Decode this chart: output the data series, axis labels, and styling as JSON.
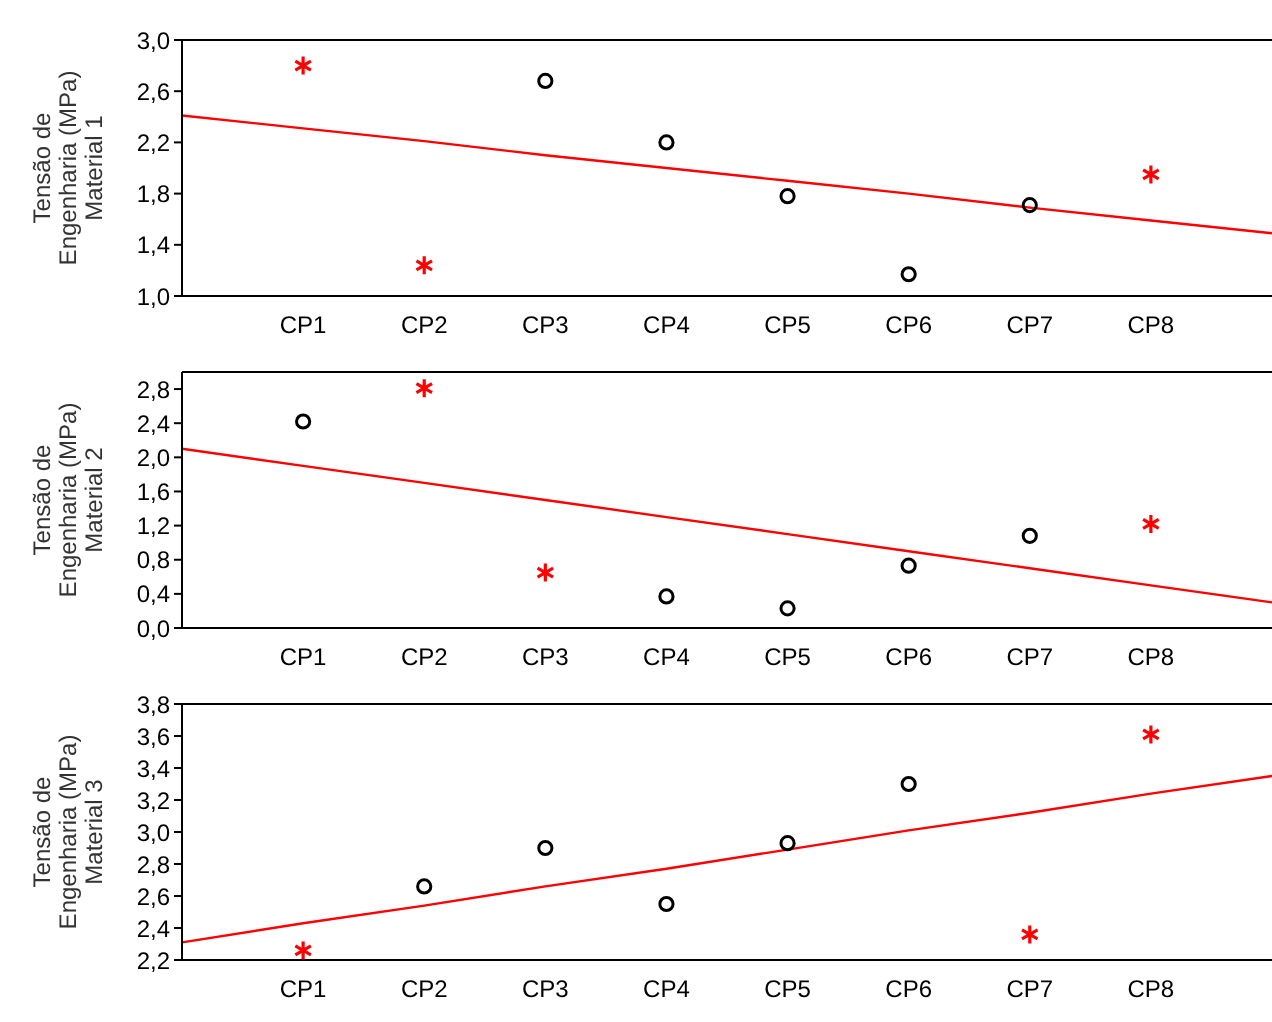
{
  "chart_data": [
    {
      "type": "scatter",
      "ylabel": "Tensão de\nEngenharia (MPa)\nMaterial 1",
      "categories": [
        null,
        "CP1",
        "CP2",
        "CP3",
        "CP4",
        "CP5",
        "CP6",
        "CP7",
        "CP8",
        null
      ],
      "ylim": [
        1.0,
        3.0
      ],
      "yticks": [
        {
          "value": 1.0,
          "label": "1,0"
        },
        {
          "value": 1.4,
          "label": "1,4"
        },
        {
          "value": 1.8,
          "label": "1,8"
        },
        {
          "value": 2.2,
          "label": "2,2"
        },
        {
          "value": 2.6,
          "label": "2,6"
        },
        {
          "value": 3.0,
          "label": "3,0"
        }
      ],
      "series": [
        {
          "marker": "circle",
          "color": "#000000",
          "values": [
            null,
            null,
            null,
            2.68,
            2.2,
            1.78,
            1.17,
            1.71,
            null,
            null
          ]
        },
        {
          "marker": "cross",
          "color": "#ff0000",
          "values": [
            null,
            2.8,
            1.24,
            null,
            null,
            null,
            null,
            null,
            1.95,
            null
          ]
        },
        {
          "type": "line",
          "color": "#ff0000",
          "values": [
            2.41,
            2.31,
            2.21,
            2.1,
            2.0,
            1.9,
            1.8,
            1.69,
            1.59,
            1.49
          ]
        }
      ]
    },
    {
      "type": "scatter",
      "ylabel": "Tensão de\nEngenharia (MPa)\nMaterial 2",
      "categories": [
        null,
        "CP1",
        "CP2",
        "CP3",
        "CP4",
        "CP5",
        "CP6",
        "CP7",
        "CP8",
        null
      ],
      "ylim": [
        0.0,
        3.0
      ],
      "yticks": [
        {
          "value": 0.0,
          "label": "0,0"
        },
        {
          "value": 0.4,
          "label": "0,4"
        },
        {
          "value": 0.8,
          "label": "0,8"
        },
        {
          "value": 1.2,
          "label": "1,2"
        },
        {
          "value": 1.6,
          "label": "1,6"
        },
        {
          "value": 2.0,
          "label": "2,0"
        },
        {
          "value": 2.4,
          "label": "2,4"
        },
        {
          "value": 2.8,
          "label": "2,8"
        }
      ],
      "series": [
        {
          "marker": "circle",
          "color": "#000000",
          "values": [
            null,
            2.42,
            null,
            null,
            0.37,
            0.23,
            0.73,
            1.08,
            null,
            null
          ]
        },
        {
          "marker": "cross",
          "color": "#ff0000",
          "values": [
            null,
            null,
            2.81,
            0.65,
            null,
            null,
            null,
            null,
            1.22,
            null
          ]
        },
        {
          "type": "line",
          "color": "#ff0000",
          "values": [
            2.1,
            1.9,
            1.7,
            1.5,
            1.3,
            1.1,
            0.9,
            0.7,
            0.5,
            0.3
          ]
        }
      ]
    },
    {
      "type": "scatter",
      "ylabel": "Tensão de\nEngenharia (MPa)\nMaterial 3",
      "categories": [
        null,
        "CP1",
        "CP2",
        "CP3",
        "CP4",
        "CP5",
        "CP6",
        "CP7",
        "CP8",
        null
      ],
      "ylim": [
        2.2,
        3.8
      ],
      "yticks": [
        {
          "value": 2.2,
          "label": "2,2"
        },
        {
          "value": 2.4,
          "label": "2,4"
        },
        {
          "value": 2.6,
          "label": "2,6"
        },
        {
          "value": 2.8,
          "label": "2,8"
        },
        {
          "value": 3.0,
          "label": "3,0"
        },
        {
          "value": 3.2,
          "label": "3,2"
        },
        {
          "value": 3.4,
          "label": "3,4"
        },
        {
          "value": 3.6,
          "label": "3,6"
        },
        {
          "value": 3.8,
          "label": "3,8"
        }
      ],
      "series": [
        {
          "marker": "circle",
          "color": "#000000",
          "values": [
            null,
            null,
            2.66,
            2.9,
            2.55,
            2.93,
            3.3,
            null,
            null,
            null
          ]
        },
        {
          "marker": "cross",
          "color": "#ff0000",
          "values": [
            null,
            2.26,
            null,
            null,
            null,
            null,
            null,
            2.36,
            3.61,
            null
          ]
        },
        {
          "type": "line",
          "color": "#ff0000",
          "values": [
            2.31,
            2.43,
            2.54,
            2.66,
            2.77,
            2.89,
            3.01,
            3.12,
            3.24,
            3.35
          ]
        }
      ]
    }
  ]
}
